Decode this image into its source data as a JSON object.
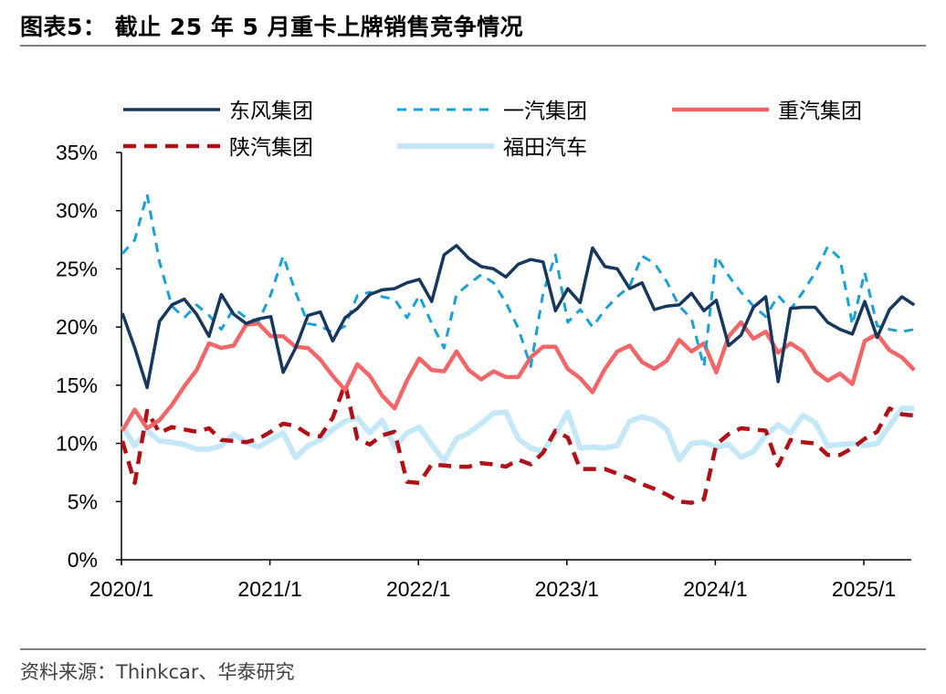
{
  "header": {
    "title": "图表5：  截止 25 年 5 月重卡上牌销售竞争情况"
  },
  "footer": {
    "source": "资料来源：Thinkcar、华泰研究"
  },
  "chart_data": {
    "type": "line",
    "title": "",
    "xlabel": "",
    "ylabel": "",
    "ylim": [
      0,
      35
    ],
    "y_unit": "%",
    "y_ticks": [
      0,
      5,
      10,
      15,
      20,
      25,
      30,
      35
    ],
    "y_tick_labels": [
      "0%",
      "5%",
      "10%",
      "15%",
      "20%",
      "25%",
      "30%",
      "35%"
    ],
    "x_tick_labels": [
      "2020/1",
      "2021/1",
      "2022/1",
      "2023/1",
      "2024/1",
      "2025/1"
    ],
    "x_tick_index": [
      0,
      12,
      24,
      36,
      48,
      60
    ],
    "x_start": "2020/1",
    "x_end": "2025/5",
    "legend_position": "top",
    "series": [
      {
        "name": "东风集团",
        "color": "#17375e",
        "dash": "solid",
        "values": [
          21.2,
          18.2,
          14.8,
          20.5,
          21.9,
          22.4,
          21.1,
          19.2,
          22.8,
          21.1,
          20.3,
          20.7,
          20.9,
          16.1,
          18.2,
          21.0,
          21.3,
          18.8,
          20.8,
          21.6,
          22.8,
          23.2,
          23.3,
          23.8,
          24.1,
          22.2,
          26.2,
          27.0,
          25.9,
          25.2,
          25.0,
          24.3,
          25.4,
          25.8,
          25.6,
          21.4,
          23.3,
          22.1,
          26.8,
          25.2,
          25.0,
          23.3,
          23.8,
          21.5,
          21.8,
          21.9,
          22.9,
          21.4,
          22.3,
          18.4,
          19.3,
          21.7,
          22.6,
          15.3,
          21.6,
          21.7,
          21.7,
          20.4,
          19.8,
          19.4,
          22.2,
          19.1,
          21.5,
          22.6,
          21.9
        ]
      },
      {
        "name": "一汽集团",
        "color": "#19a0d8",
        "dash": "dashed",
        "values": [
          26.3,
          27.5,
          31.4,
          25.6,
          21.8,
          20.8,
          21.9,
          21.0,
          19.8,
          21.6,
          20.8,
          20.5,
          22.8,
          26.1,
          23.0,
          20.3,
          20.1,
          19.5,
          20.1,
          22.7,
          23.0,
          22.6,
          22.4,
          20.8,
          22.7,
          20.3,
          18.2,
          22.8,
          23.7,
          24.5,
          23.8,
          22.1,
          19.9,
          16.6,
          22.9,
          26.2,
          20.4,
          21.5,
          20.0,
          21.5,
          22.6,
          23.5,
          26.1,
          25.5,
          23.9,
          21.8,
          20.7,
          16.6,
          26.1,
          24.4,
          23.0,
          21.8,
          20.9,
          22.7,
          21.5,
          23.0,
          24.7,
          26.9,
          25.9,
          20.2,
          24.7,
          20.1,
          19.8,
          19.6,
          19.8
        ]
      },
      {
        "name": "重汽集团",
        "color": "#f26667",
        "dash": "solid",
        "values": [
          11.1,
          12.9,
          11.3,
          12.0,
          13.3,
          14.9,
          16.3,
          18.6,
          18.2,
          18.4,
          20.2,
          20.3,
          19.2,
          19.2,
          18.3,
          18.2,
          17.2,
          15.8,
          14.6,
          16.8,
          15.8,
          14.1,
          13.0,
          15.4,
          17.3,
          16.3,
          16.2,
          17.9,
          16.3,
          15.5,
          16.2,
          15.7,
          15.7,
          17.4,
          18.3,
          18.3,
          16.4,
          15.6,
          14.4,
          16.4,
          17.9,
          18.4,
          17.0,
          16.4,
          17.1,
          18.9,
          17.9,
          18.6,
          16.1,
          19.2,
          20.4,
          19.0,
          19.6,
          17.8,
          18.6,
          17.9,
          16.2,
          15.4,
          16.0,
          15.1,
          18.8,
          19.4,
          18.0,
          17.4,
          16.3
        ]
      },
      {
        "name": "陕汽集团",
        "color": "#b01116",
        "dash": "dashed",
        "values": [
          10.2,
          6.6,
          12.8,
          10.9,
          11.4,
          11.2,
          11.0,
          11.3,
          10.3,
          10.2,
          10.1,
          10.4,
          11.0,
          11.7,
          11.5,
          10.8,
          10.6,
          12.2,
          15.1,
          10.4,
          9.9,
          10.7,
          11.0,
          6.7,
          6.6,
          8.2,
          8.1,
          8.0,
          8.0,
          8.3,
          8.2,
          8.0,
          8.6,
          8.2,
          9.2,
          11.1,
          10.5,
          7.8,
          7.8,
          7.8,
          7.4,
          7.0,
          6.5,
          6.1,
          5.6,
          5.0,
          4.9,
          5.2,
          9.9,
          10.8,
          11.3,
          11.2,
          11.1,
          8.1,
          10.3,
          10.1,
          10.0,
          9.0,
          9.0,
          9.6,
          10.4,
          11.0,
          13.0,
          12.5,
          12.4
        ]
      },
      {
        "name": "福田汽车",
        "color": "#c5e8f9",
        "dash": "solid",
        "values": [
          11.5,
          9.8,
          11.1,
          10.2,
          10.1,
          9.9,
          9.5,
          9.5,
          9.8,
          10.8,
          10.1,
          9.7,
          10.3,
          10.9,
          8.8,
          9.8,
          10.3,
          11.2,
          11.9,
          12.2,
          10.9,
          12.0,
          9.7,
          10.9,
          11.4,
          9.9,
          8.5,
          10.4,
          10.9,
          11.7,
          12.6,
          12.7,
          10.4,
          9.6,
          9.3,
          10.8,
          12.7,
          9.6,
          9.7,
          9.6,
          9.8,
          11.9,
          12.3,
          12.0,
          11.2,
          8.6,
          10.0,
          10.1,
          9.7,
          9.9,
          8.8,
          9.3,
          10.7,
          11.6,
          10.9,
          12.4,
          11.8,
          9.8,
          9.9,
          10.0,
          9.8,
          10.0,
          11.5,
          13.0,
          13.0
        ]
      }
    ]
  }
}
